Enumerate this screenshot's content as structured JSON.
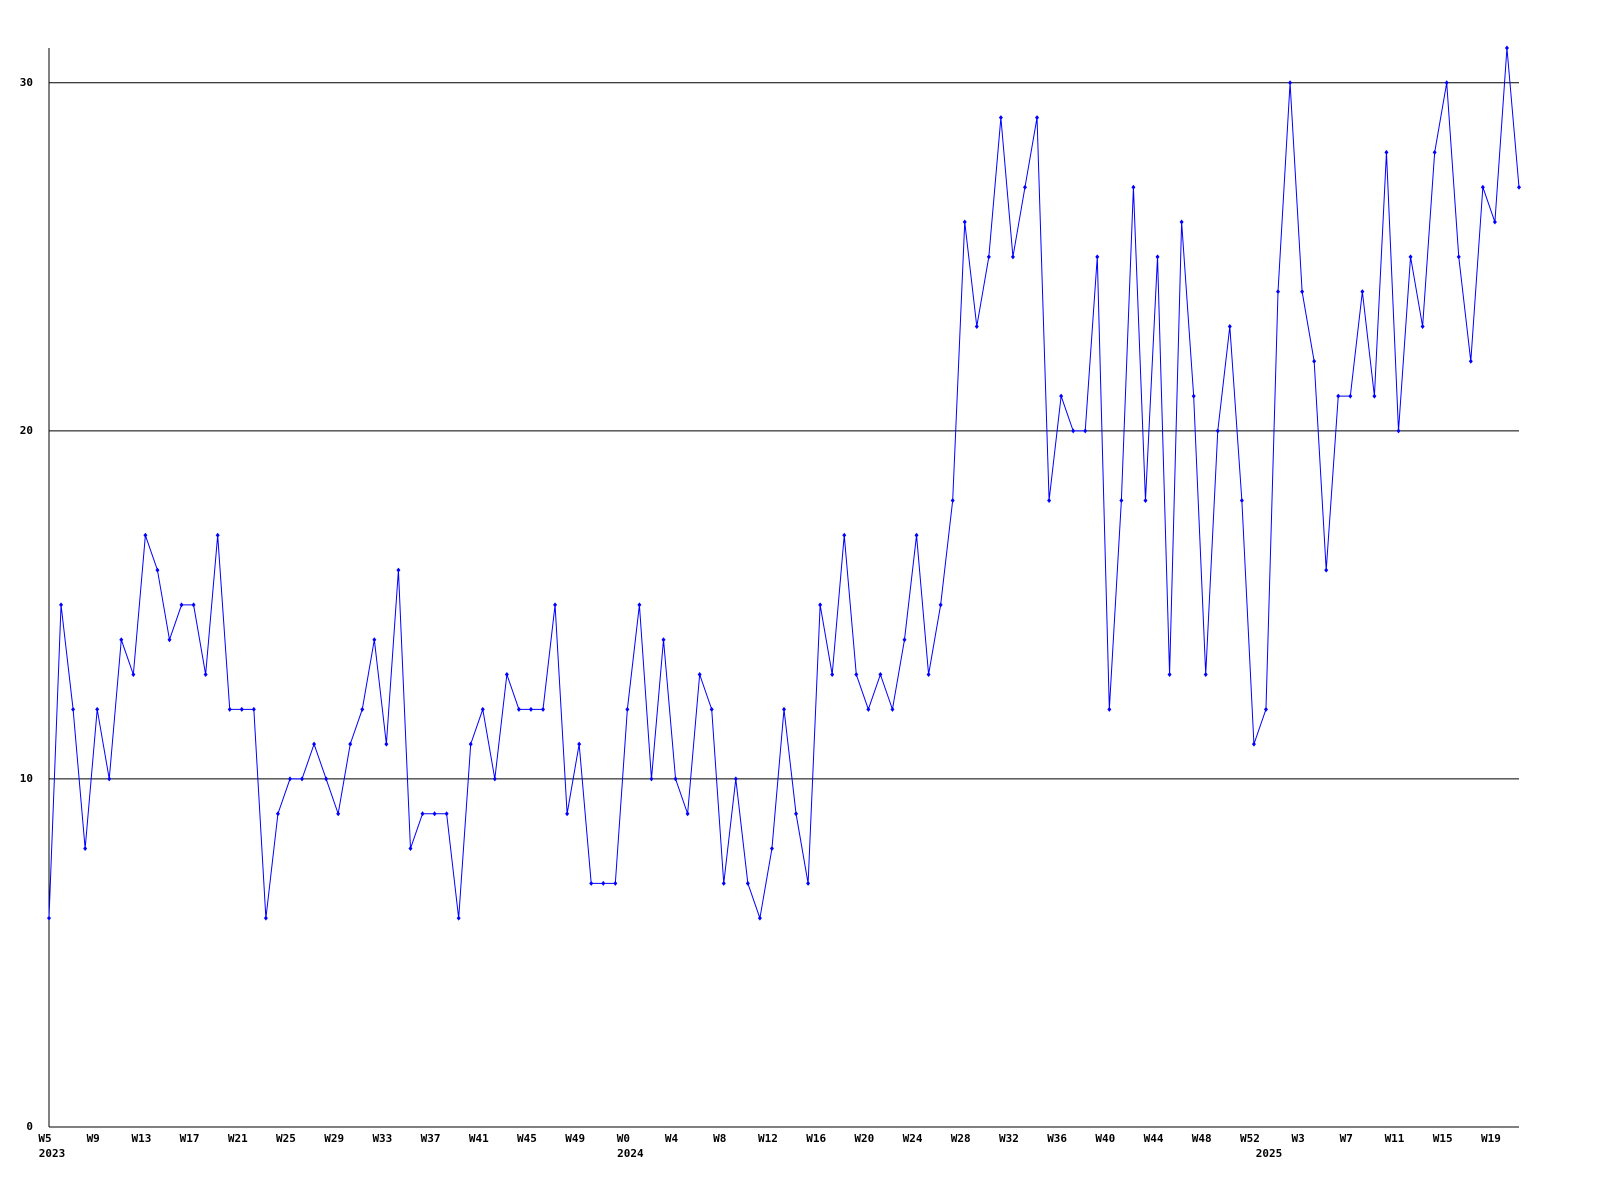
{
  "chart_data": {
    "type": "line",
    "categories": [
      "W5",
      null,
      null,
      null,
      "W9",
      null,
      null,
      null,
      "W13",
      null,
      null,
      null,
      "W17",
      null,
      null,
      null,
      "W21",
      null,
      null,
      null,
      "W25",
      null,
      null,
      null,
      "W29",
      null,
      null,
      null,
      "W33",
      null,
      null,
      null,
      "W37",
      null,
      null,
      null,
      "W41",
      null,
      null,
      null,
      "W45",
      null,
      null,
      null,
      "W49",
      null,
      null,
      null,
      "W0",
      null,
      null,
      null,
      "W4",
      null,
      null,
      null,
      "W8",
      null,
      null,
      null,
      "W12",
      null,
      null,
      null,
      "W16",
      null,
      null,
      null,
      "W20",
      null,
      null,
      null,
      "W24",
      null,
      null,
      null,
      "W28",
      null,
      null,
      null,
      "W32",
      null,
      null,
      null,
      "W36",
      null,
      null,
      null,
      "W40",
      null,
      null,
      null,
      "W44",
      null,
      null,
      null,
      "W48",
      null,
      null,
      null,
      "W52",
      null,
      null,
      null,
      "W3",
      null,
      null,
      null,
      "W7",
      null,
      null,
      null,
      "W11",
      null,
      null,
      null,
      "W15",
      null,
      null,
      null,
      "W19",
      null,
      null
    ],
    "category_years": [
      "2023",
      null,
      null,
      null,
      null,
      null,
      null,
      null,
      null,
      null,
      null,
      null,
      null,
      null,
      null,
      null,
      null,
      null,
      null,
      null,
      null,
      null,
      null,
      null,
      null,
      null,
      null,
      null,
      null,
      null,
      null,
      null,
      null,
      null,
      null,
      null,
      null,
      null,
      null,
      null,
      null,
      null,
      null,
      null,
      null,
      null,
      null,
      null,
      "2024",
      null,
      null,
      null,
      null,
      null,
      null,
      null,
      null,
      null,
      null,
      null,
      null,
      null,
      null,
      null,
      null,
      null,
      null,
      null,
      null,
      null,
      null,
      null,
      null,
      null,
      null,
      null,
      null,
      null,
      null,
      null,
      null,
      null,
      null,
      null,
      null,
      null,
      null,
      null,
      null,
      null,
      null,
      null,
      null,
      null,
      null,
      null,
      null,
      null,
      null,
      null,
      null,
      "2025",
      null,
      null,
      null,
      null,
      null,
      null,
      null,
      null,
      null,
      null,
      null,
      null,
      null,
      null,
      null,
      null,
      null,
      null,
      null,
      null,
      null
    ],
    "series": [
      {
        "color": "#0000ff",
        "values": [
          6,
          15,
          12,
          8,
          12,
          10,
          14,
          13,
          17,
          16,
          14,
          15,
          15,
          13,
          17,
          12,
          12,
          12,
          6,
          9,
          10,
          10,
          11,
          10,
          9,
          11,
          12,
          14,
          11,
          16,
          8,
          9,
          9,
          9,
          6,
          11,
          12,
          10,
          13,
          12,
          12,
          12,
          15,
          9,
          11,
          7,
          7,
          7,
          12,
          15,
          10,
          14,
          10,
          9,
          13,
          12,
          7,
          10,
          7,
          6,
          8,
          12,
          9,
          7,
          15,
          13,
          17,
          13,
          12,
          13,
          12,
          14,
          17,
          13,
          15,
          18,
          26,
          23,
          25,
          29,
          25,
          27,
          29,
          18,
          21,
          20,
          20,
          25,
          12,
          18,
          27,
          18,
          25,
          13,
          26,
          21,
          13,
          20,
          23,
          18,
          11,
          12,
          24,
          30,
          24,
          22,
          16,
          21,
          21,
          24,
          21,
          28,
          20,
          25,
          23,
          28,
          30,
          25,
          22,
          27,
          26,
          31,
          27
        ]
      }
    ],
    "ylim": [
      0,
      31
    ],
    "yticks": [
      0,
      10,
      20,
      30
    ],
    "grid": true
  }
}
